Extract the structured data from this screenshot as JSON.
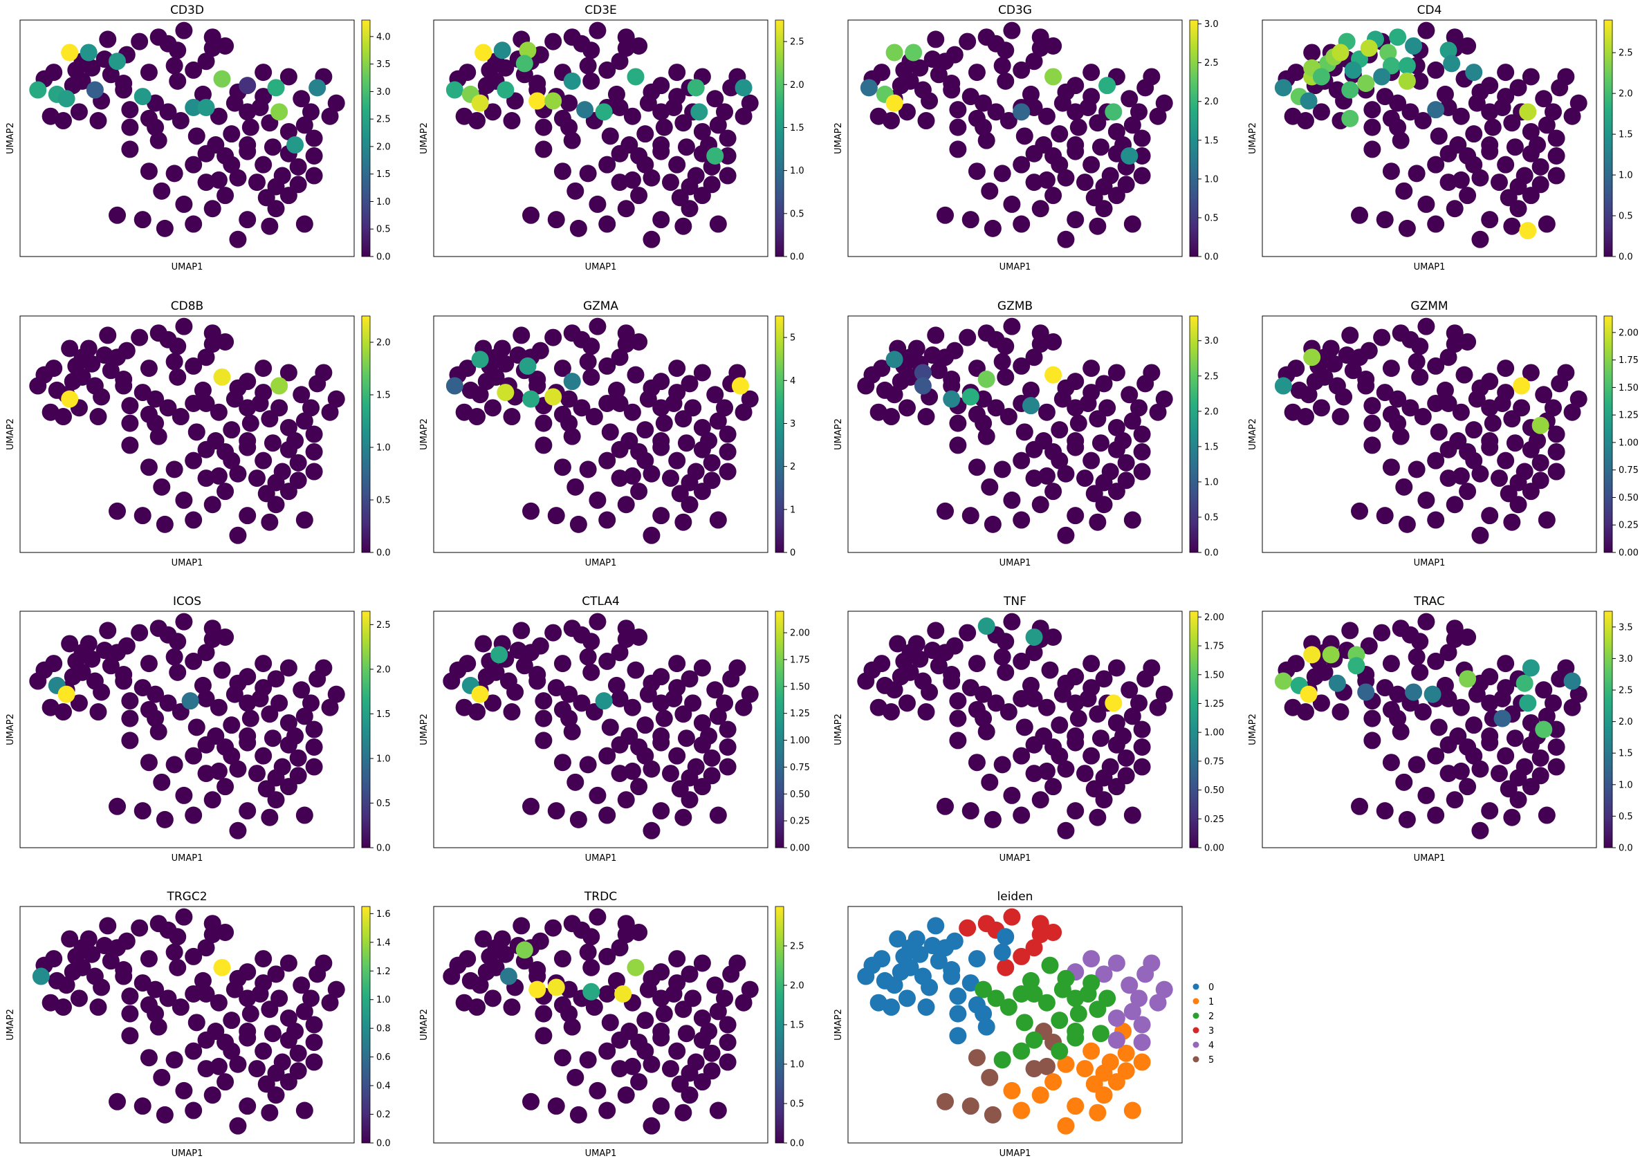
{
  "figure": {
    "panel_titles": [
      "CD3D",
      "CD3E",
      "CD3G",
      "CD4",
      "CD8B",
      "GZMA",
      "GZMB",
      "GZMM",
      "ICOS",
      "CTLA4",
      "TNF",
      "TRAC",
      "TRGC2",
      "TRDC",
      "leiden"
    ],
    "xlabel": "UMAP1",
    "ylabel": "UMAP2"
  },
  "chart_data": [
    {
      "type": "scatter",
      "title": "CD3D",
      "xlabel": "UMAP1",
      "ylabel": "UMAP2",
      "colorbar": {
        "ticks": [
          "0.0",
          "0.5",
          "1.0",
          "1.5",
          "2.0",
          "2.5",
          "3.0",
          "3.5",
          "4.0"
        ],
        "max": 4.3
      },
      "highlights": [
        [
          0.13,
          0.89,
          4.3
        ],
        [
          0.19,
          0.89,
          2.2
        ],
        [
          0.28,
          0.85,
          2.3
        ],
        [
          0.03,
          0.72,
          2.6
        ],
        [
          0.09,
          0.7,
          2.5
        ],
        [
          0.12,
          0.68,
          2.4
        ],
        [
          0.21,
          0.72,
          1.3
        ],
        [
          0.36,
          0.69,
          2.3
        ],
        [
          0.52,
          0.64,
          2.1
        ],
        [
          0.56,
          0.64,
          2.3
        ],
        [
          0.61,
          0.77,
          3.4
        ],
        [
          0.69,
          0.74,
          0.6
        ],
        [
          0.78,
          0.73,
          2.7
        ],
        [
          0.91,
          0.73,
          1.9
        ],
        [
          0.79,
          0.62,
          3.5
        ],
        [
          0.84,
          0.47,
          2.3
        ]
      ]
    },
    {
      "type": "scatter",
      "title": "CD3E",
      "xlabel": "UMAP1",
      "ylabel": "UMAP2",
      "colorbar": {
        "ticks": [
          "0.0",
          "0.5",
          "1.0",
          "1.5",
          "2.0",
          "2.5"
        ],
        "max": 2.75
      },
      "highlights": [
        [
          0.13,
          0.89,
          2.75
        ],
        [
          0.19,
          0.9,
          1.3
        ],
        [
          0.27,
          0.9,
          2.3
        ],
        [
          0.26,
          0.84,
          1.9
        ],
        [
          0.04,
          0.72,
          1.7
        ],
        [
          0.09,
          0.7,
          2.2
        ],
        [
          0.12,
          0.66,
          2.6
        ],
        [
          0.2,
          0.72,
          1.7
        ],
        [
          0.3,
          0.67,
          2.75
        ],
        [
          0.35,
          0.67,
          2.3
        ],
        [
          0.41,
          0.76,
          1.4
        ],
        [
          0.45,
          0.63,
          1.1
        ],
        [
          0.51,
          0.62,
          1.7
        ],
        [
          0.61,
          0.78,
          1.7
        ],
        [
          0.8,
          0.73,
          1.8
        ],
        [
          0.95,
          0.73,
          1.4
        ],
        [
          0.81,
          0.62,
          1.5
        ],
        [
          0.86,
          0.42,
          1.8
        ]
      ]
    },
    {
      "type": "scatter",
      "title": "CD3G",
      "xlabel": "UMAP1",
      "ylabel": "UMAP2",
      "colorbar": {
        "ticks": [
          "0.0",
          "0.5",
          "1.0",
          "1.5",
          "2.0",
          "2.5",
          "3.0"
        ],
        "max": 3.05
      },
      "highlights": [
        [
          0.12,
          0.89,
          2.4
        ],
        [
          0.18,
          0.89,
          2.3
        ],
        [
          0.04,
          0.73,
          1.1
        ],
        [
          0.09,
          0.7,
          2.3
        ],
        [
          0.12,
          0.66,
          3.05
        ],
        [
          0.52,
          0.62,
          1.0
        ],
        [
          0.62,
          0.78,
          2.5
        ],
        [
          0.79,
          0.74,
          1.9
        ],
        [
          0.81,
          0.62,
          2.1
        ],
        [
          0.86,
          0.42,
          1.5
        ]
      ]
    },
    {
      "type": "scatter",
      "title": "CD4",
      "xlabel": "UMAP1",
      "ylabel": "UMAP2",
      "colorbar": {
        "ticks": [
          "0.0",
          "0.5",
          "1.0",
          "1.5",
          "2.0",
          "2.5"
        ],
        "max": 2.9
      },
      "highlights": [
        [
          0.13,
          0.78,
          2.5
        ],
        [
          0.18,
          0.84,
          2.2
        ],
        [
          0.13,
          0.82,
          2.4
        ],
        [
          0.24,
          0.94,
          1.9
        ],
        [
          0.2,
          0.87,
          2.4
        ],
        [
          0.22,
          0.89,
          2.6
        ],
        [
          0.33,
          0.95,
          1.7
        ],
        [
          0.4,
          0.96,
          1.8
        ],
        [
          0.45,
          0.92,
          1.4
        ],
        [
          0.56,
          0.9,
          1.6
        ],
        [
          0.28,
          0.86,
          1.8
        ],
        [
          0.31,
          0.91,
          2.6
        ],
        [
          0.37,
          0.89,
          2.2
        ],
        [
          0.38,
          0.83,
          1.9
        ],
        [
          0.26,
          0.81,
          1.5
        ],
        [
          0.3,
          0.75,
          2.3
        ],
        [
          0.35,
          0.78,
          1.3
        ],
        [
          0.16,
          0.78,
          2.0
        ],
        [
          0.43,
          0.83,
          1.8
        ],
        [
          0.57,
          0.84,
          1.4
        ],
        [
          0.64,
          0.8,
          1.3
        ],
        [
          0.04,
          0.73,
          1.3
        ],
        [
          0.09,
          0.69,
          2.2
        ],
        [
          0.12,
          0.67,
          1.3
        ],
        [
          0.25,
          0.72,
          2.0
        ],
        [
          0.25,
          0.59,
          2.1
        ],
        [
          0.43,
          0.76,
          2.5
        ],
        [
          0.52,
          0.63,
          1.0
        ],
        [
          0.81,
          0.62,
          2.6
        ],
        [
          0.81,
          0.08,
          2.9
        ]
      ]
    },
    {
      "type": "scatter",
      "title": "CD8B",
      "xlabel": "UMAP1",
      "ylabel": "UMAP2",
      "colorbar": {
        "ticks": [
          "0.0",
          "0.5",
          "1.0",
          "1.5",
          "2.0"
        ],
        "max": 2.25
      },
      "highlights": [
        [
          0.13,
          0.66,
          2.25
        ],
        [
          0.61,
          0.76,
          2.2
        ],
        [
          0.79,
          0.72,
          1.9
        ]
      ]
    },
    {
      "type": "scatter",
      "title": "GZMA",
      "xlabel": "UMAP1",
      "ylabel": "UMAP2",
      "colorbar": {
        "ticks": [
          "0",
          "1",
          "2",
          "3",
          "4",
          "5"
        ],
        "max": 5.5
      },
      "highlights": [
        [
          0.04,
          0.72,
          1.7
        ],
        [
          0.12,
          0.84,
          3.2
        ],
        [
          0.27,
          0.81,
          3.1
        ],
        [
          0.2,
          0.69,
          5.1
        ],
        [
          0.28,
          0.66,
          3.3
        ],
        [
          0.35,
          0.67,
          5.2
        ],
        [
          0.41,
          0.74,
          2.3
        ],
        [
          0.94,
          0.72,
          5.5
        ]
      ]
    },
    {
      "type": "scatter",
      "title": "GZMB",
      "xlabel": "UMAP1",
      "ylabel": "UMAP2",
      "colorbar": {
        "ticks": [
          "0.0",
          "0.5",
          "1.0",
          "1.5",
          "2.0",
          "2.5",
          "3.0"
        ],
        "max": 3.35
      },
      "highlights": [
        [
          0.12,
          0.84,
          1.5
        ],
        [
          0.21,
          0.78,
          0.7
        ],
        [
          0.21,
          0.72,
          0.9
        ],
        [
          0.3,
          0.66,
          1.5
        ],
        [
          0.36,
          0.67,
          2.1
        ],
        [
          0.41,
          0.75,
          2.6
        ],
        [
          0.55,
          0.63,
          1.5
        ],
        [
          0.62,
          0.77,
          3.35
        ]
      ]
    },
    {
      "type": "scatter",
      "title": "GZMM",
      "xlabel": "UMAP1",
      "ylabel": "UMAP2",
      "colorbar": {
        "ticks": [
          "0.00",
          "0.25",
          "0.50",
          "0.75",
          "1.00",
          "1.25",
          "1.50",
          "1.75",
          "2.00"
        ],
        "max": 2.15
      },
      "highlights": [
        [
          0.04,
          0.72,
          1.1
        ],
        [
          0.13,
          0.85,
          1.8
        ],
        [
          0.79,
          0.72,
          2.15
        ],
        [
          0.85,
          0.54,
          1.8
        ]
      ]
    },
    {
      "type": "scatter",
      "title": "ICOS",
      "xlabel": "UMAP1",
      "ylabel": "UMAP2",
      "colorbar": {
        "ticks": [
          "0.0",
          "0.5",
          "1.0",
          "1.5",
          "2.0",
          "2.5"
        ],
        "max": 2.65
      },
      "highlights": [
        [
          0.09,
          0.7,
          1.2
        ],
        [
          0.12,
          0.66,
          2.65
        ],
        [
          0.51,
          0.63,
          1.0
        ]
      ]
    },
    {
      "type": "scatter",
      "title": "CTLA4",
      "xlabel": "UMAP1",
      "ylabel": "UMAP2",
      "colorbar": {
        "ticks": [
          "0.00",
          "0.25",
          "0.50",
          "0.75",
          "1.00",
          "1.25",
          "1.50",
          "1.75",
          "2.00"
        ],
        "max": 2.2
      },
      "highlights": [
        [
          0.18,
          0.84,
          1.3
        ],
        [
          0.09,
          0.7,
          1.1
        ],
        [
          0.12,
          0.66,
          2.2
        ],
        [
          0.51,
          0.63,
          1.1
        ]
      ]
    },
    {
      "type": "scatter",
      "title": "TNF",
      "xlabel": "UMAP1",
      "ylabel": "UMAP2",
      "colorbar": {
        "ticks": [
          "0.00",
          "0.25",
          "0.50",
          "0.75",
          "1.00",
          "1.25",
          "1.50",
          "1.75",
          "2.00"
        ],
        "max": 2.05
      },
      "highlights": [
        [
          0.41,
          0.97,
          1.1
        ],
        [
          0.56,
          0.92,
          1.1
        ],
        [
          0.81,
          0.62,
          2.05
        ]
      ]
    },
    {
      "type": "scatter",
      "title": "TRAC",
      "xlabel": "UMAP1",
      "ylabel": "UMAP2",
      "colorbar": {
        "ticks": [
          "0.0",
          "0.5",
          "1.0",
          "1.5",
          "2.0",
          "2.5",
          "3.0",
          "3.5"
        ],
        "max": 3.75
      },
      "highlights": [
        [
          0.13,
          0.84,
          3.7
        ],
        [
          0.19,
          0.84,
          3.1
        ],
        [
          0.27,
          0.84,
          2.9
        ],
        [
          0.27,
          0.79,
          2.4
        ],
        [
          0.04,
          0.72,
          3.0
        ],
        [
          0.09,
          0.7,
          2.3
        ],
        [
          0.12,
          0.66,
          3.75
        ],
        [
          0.21,
          0.71,
          1.6
        ],
        [
          0.3,
          0.67,
          1.2
        ],
        [
          0.45,
          0.67,
          1.4
        ],
        [
          0.51,
          0.66,
          1.6
        ],
        [
          0.62,
          0.73,
          3.0
        ],
        [
          0.8,
          0.71,
          2.5
        ],
        [
          0.82,
          0.78,
          2.0
        ],
        [
          0.95,
          0.72,
          1.6
        ],
        [
          0.81,
          0.62,
          2.2
        ],
        [
          0.73,
          0.55,
          1.2
        ],
        [
          0.86,
          0.5,
          2.7
        ]
      ]
    },
    {
      "type": "scatter",
      "title": "TRGC2",
      "xlabel": "UMAP1",
      "ylabel": "UMAP2",
      "colorbar": {
        "ticks": [
          "0.0",
          "0.2",
          "0.4",
          "0.6",
          "0.8",
          "1.0",
          "1.2",
          "1.4",
          "1.6"
        ],
        "max": 1.65
      },
      "highlights": [
        [
          0.04,
          0.72,
          0.8
        ],
        [
          0.61,
          0.76,
          1.65
        ]
      ]
    },
    {
      "type": "scatter",
      "title": "TRDC",
      "xlabel": "UMAP1",
      "ylabel": "UMAP2",
      "colorbar": {
        "ticks": [
          "0.0",
          "0.5",
          "1.0",
          "1.5",
          "2.0",
          "2.5"
        ],
        "max": 3.0
      },
      "highlights": [
        [
          0.26,
          0.84,
          2.4
        ],
        [
          0.21,
          0.72,
          1.2
        ],
        [
          0.3,
          0.66,
          3.0
        ],
        [
          0.36,
          0.67,
          2.95
        ],
        [
          0.47,
          0.65,
          1.8
        ],
        [
          0.57,
          0.64,
          2.95
        ],
        [
          0.61,
          0.76,
          2.5
        ]
      ]
    },
    {
      "type": "scatter",
      "title": "leiden",
      "xlabel": "UMAP1",
      "ylabel": "UMAP2",
      "legend": {
        "title": "",
        "placement": "right",
        "entries": [
          "0",
          "1",
          "2",
          "3",
          "4",
          "5"
        ],
        "colors": [
          "#1f77b4",
          "#ff7f0e",
          "#2ca02c",
          "#d62728",
          "#9467bd",
          "#8c564b"
        ]
      }
    }
  ]
}
